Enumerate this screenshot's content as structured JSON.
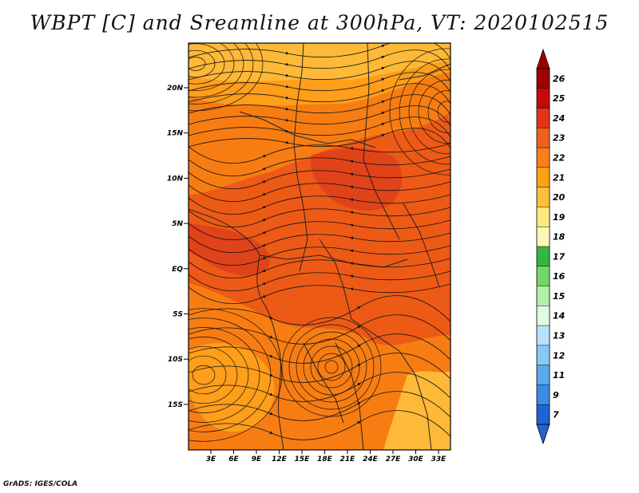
{
  "title": "WBPT [C] and Sreamline at 300hPa, VT: 2020102515",
  "footer": "GrADS: IGES/COLA",
  "map": {
    "lat_labels": [
      "20N",
      "15N",
      "10N",
      "5N",
      "EQ",
      "5S",
      "10S",
      "15S"
    ],
    "lon_labels": [
      "3E",
      "6E",
      "9E",
      "12E",
      "15E",
      "18E",
      "21E",
      "24E",
      "27E",
      "30E",
      "33E"
    ],
    "fill_colors": {
      "t20": "#ffb938",
      "t21": "#ff9e1a",
      "t22": "#f77d12",
      "t23": "#ed5a16",
      "t24": "#e0421a"
    }
  },
  "colorbar": {
    "levels": [
      "26",
      "25",
      "24",
      "23",
      "22",
      "21",
      "20",
      "19",
      "18",
      "17",
      "16",
      "15",
      "14",
      "13",
      "12",
      "11",
      "9",
      "7"
    ],
    "colors": [
      "#a00000",
      "#c30a0a",
      "#e23318",
      "#f0601a",
      "#f8801c",
      "#fda313",
      "#fec039",
      "#fee880",
      "#fef8b8",
      "#38b540",
      "#72d76a",
      "#b4f0a8",
      "#e2fae4",
      "#b8e2fc",
      "#88c8f4",
      "#5aaaee",
      "#3a8ce2",
      "#2262d4"
    ]
  }
}
